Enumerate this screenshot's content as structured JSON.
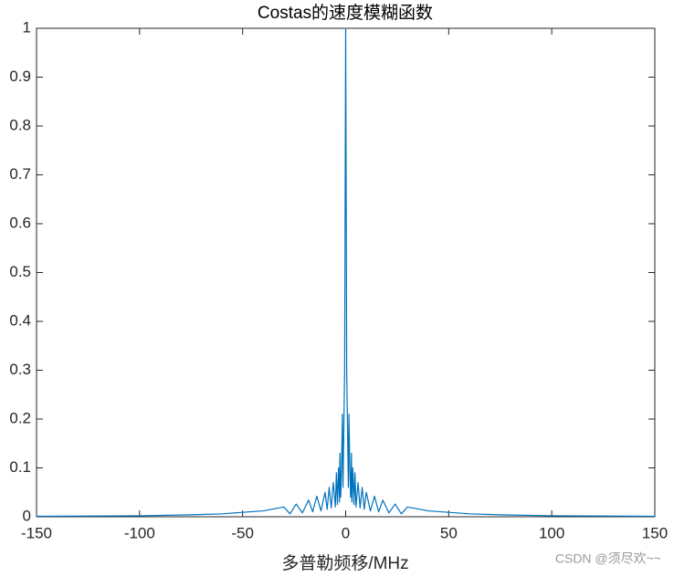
{
  "chart_data": {
    "type": "line",
    "title": "Costas的速度模糊函数",
    "x_label": "多普勒频移/MHz",
    "watermark": "CSDN @须尽欢~~",
    "x": [
      -150,
      -100,
      -75,
      -60,
      -50,
      -40,
      -35,
      -30,
      -27,
      -24,
      -21,
      -18,
      -16,
      -14,
      -12,
      -10,
      -9,
      -8,
      -7,
      -6,
      -5,
      -4.5,
      -4,
      -3.5,
      -3,
      -2.8,
      -2.4,
      -2,
      -1.6,
      -1.3,
      -1,
      -0.5,
      0,
      0.5,
      1,
      1.3,
      1.6,
      2,
      2.4,
      2.8,
      3,
      3.5,
      4,
      4.5,
      5,
      6,
      7,
      8,
      9,
      10,
      12,
      14,
      16,
      18,
      21,
      24,
      27,
      30,
      35,
      40,
      50,
      60,
      75,
      100,
      150
    ],
    "series": [
      {
        "name": "Costas",
        "color": "#0072bd",
        "values": [
          0.001,
          0.002,
          0.004,
          0.006,
          0.009,
          0.012,
          0.016,
          0.02,
          0.006,
          0.026,
          0.008,
          0.034,
          0.01,
          0.042,
          0.012,
          0.05,
          0.015,
          0.06,
          0.018,
          0.07,
          0.02,
          0.09,
          0.025,
          0.1,
          0.03,
          0.13,
          0.04,
          0.1,
          0.21,
          0.06,
          0.15,
          0.3,
          1,
          0.3,
          0.15,
          0.06,
          0.21,
          0.1,
          0.04,
          0.13,
          0.03,
          0.1,
          0.025,
          0.09,
          0.02,
          0.07,
          0.018,
          0.06,
          0.015,
          0.05,
          0.012,
          0.042,
          0.01,
          0.034,
          0.008,
          0.026,
          0.006,
          0.02,
          0.016,
          0.012,
          0.009,
          0.006,
          0.004,
          0.002,
          0.001
        ]
      }
    ],
    "xlim": [
      -150,
      150
    ],
    "xticks": [
      -150,
      -100,
      -50,
      0,
      50,
      100,
      150
    ],
    "ylim": [
      0,
      1
    ],
    "yticks": [
      0,
      0.1,
      0.2,
      0.3,
      0.4,
      0.5,
      0.6,
      0.7,
      0.8,
      0.9,
      1
    ],
    "grid": false
  }
}
